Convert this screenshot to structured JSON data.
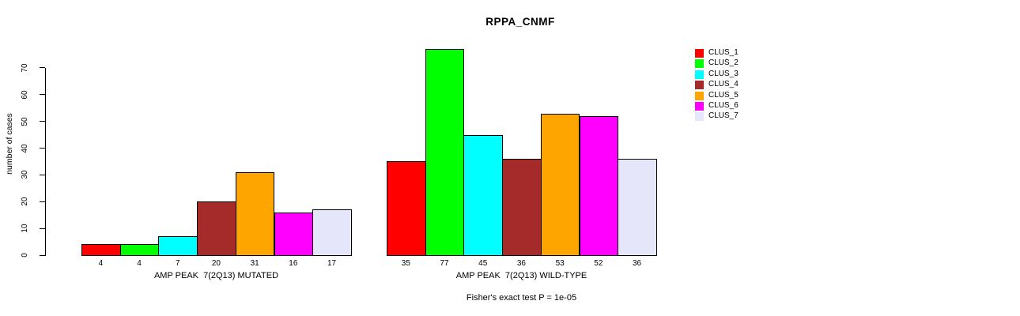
{
  "chart_data": {
    "type": "bar",
    "title": "RPPA_CNMF",
    "ylabel": "number of cases",
    "xlabel": "",
    "ylim": [
      0,
      70
    ],
    "yticks": [
      0,
      10,
      20,
      30,
      40,
      50,
      60,
      70
    ],
    "grid": false,
    "legend_position": "top-right",
    "legend": [
      "CLUS_1",
      "CLUS_2",
      "CLUS_3",
      "CLUS_4",
      "CLUS_5",
      "CLUS_6",
      "CLUS_7"
    ],
    "series_colors": [
      "#FF0000",
      "#00FF00",
      "#00FFFF",
      "#A52A2A",
      "#FFA500",
      "#FF00FF",
      "#E6E6FA"
    ],
    "bar_border_color": "#000000",
    "groups": [
      {
        "label": "AMP PEAK  7(2Q13) MUTATED",
        "values": [
          4,
          4,
          7,
          20,
          31,
          16,
          17
        ]
      },
      {
        "label": "AMP PEAK  7(2Q13) WILD-TYPE",
        "values": [
          35,
          77,
          45,
          36,
          53,
          52,
          36
        ]
      }
    ],
    "annotation": "Fisher's exact test P = 1e-05"
  }
}
